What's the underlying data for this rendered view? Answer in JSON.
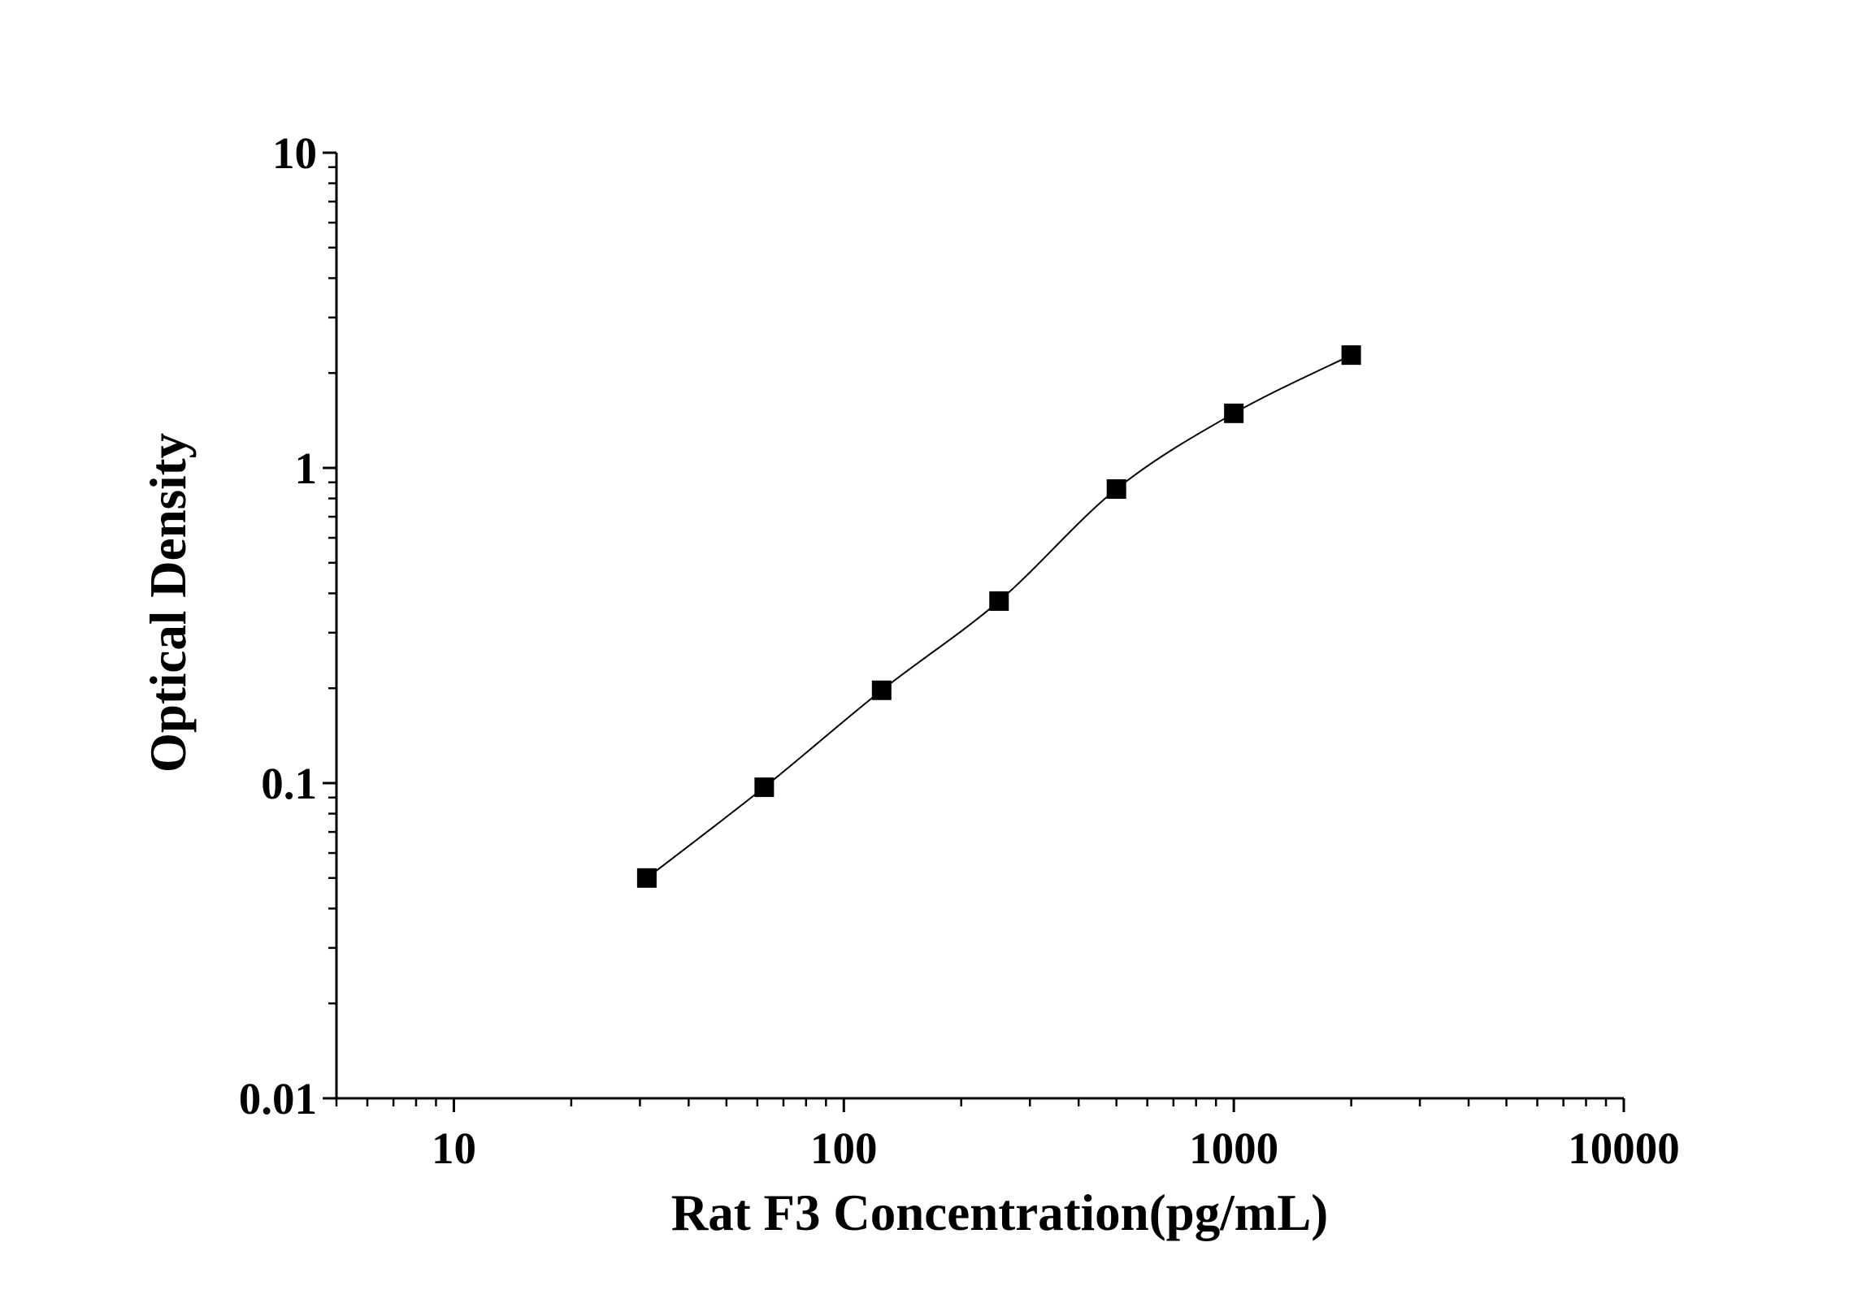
{
  "chart_data": {
    "type": "line",
    "title": "",
    "xlabel": "Rat F3 Concentration(pg/mL)",
    "ylabel": "Optical Density",
    "x_scale": "log",
    "y_scale": "log",
    "xlim": [
      5,
      10000
    ],
    "ylim": [
      0.01,
      10
    ],
    "x_ticks": [
      10,
      100,
      1000,
      10000
    ],
    "x_tick_labels": [
      "10",
      "100",
      "1000",
      "10000"
    ],
    "y_ticks": [
      0.01,
      0.1,
      1,
      10
    ],
    "y_tick_labels": [
      "0.01",
      "0.1",
      "1",
      "10"
    ],
    "grid": false,
    "legend": "none",
    "series": [
      {
        "marker": "square",
        "color": "#000000",
        "x": [
          31.25,
          62.5,
          125,
          250,
          500,
          1000,
          2000
        ],
        "y": [
          0.05,
          0.097,
          0.197,
          0.378,
          0.857,
          1.49,
          2.28
        ]
      }
    ]
  }
}
